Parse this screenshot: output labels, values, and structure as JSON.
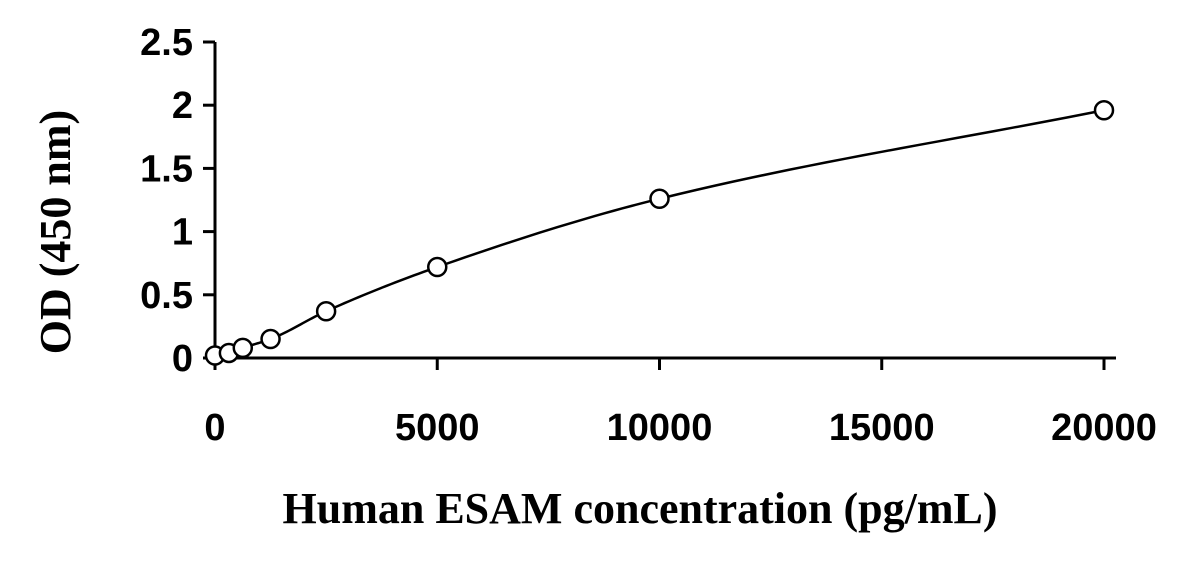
{
  "chart_data": {
    "type": "scatter",
    "xlabel": "Human ESAM concentration (pg/mL)",
    "ylabel": "OD (450 nm)",
    "xlim": [
      0,
      20000
    ],
    "ylim": [
      0,
      2.5
    ],
    "x_ticks": [
      0,
      5000,
      10000,
      15000,
      20000
    ],
    "x_tick_labels": [
      "0",
      "5000",
      "10000",
      "15000",
      "20000"
    ],
    "y_ticks": [
      0,
      0.5,
      1,
      1.5,
      2,
      2.5
    ],
    "y_tick_labels": [
      "0",
      "0.5",
      "1",
      "1.5",
      "2",
      "2.5"
    ],
    "grid": false,
    "legend": "none",
    "series": [
      {
        "x": [
          0,
          312.5,
          625,
          1250,
          2500,
          5000,
          10000,
          20000
        ],
        "y": [
          0.02,
          0.04,
          0.08,
          0.15,
          0.37,
          0.72,
          1.26,
          1.96
        ],
        "marker": "open-circle",
        "fit": "smooth-curve",
        "color": "#000000"
      }
    ]
  }
}
